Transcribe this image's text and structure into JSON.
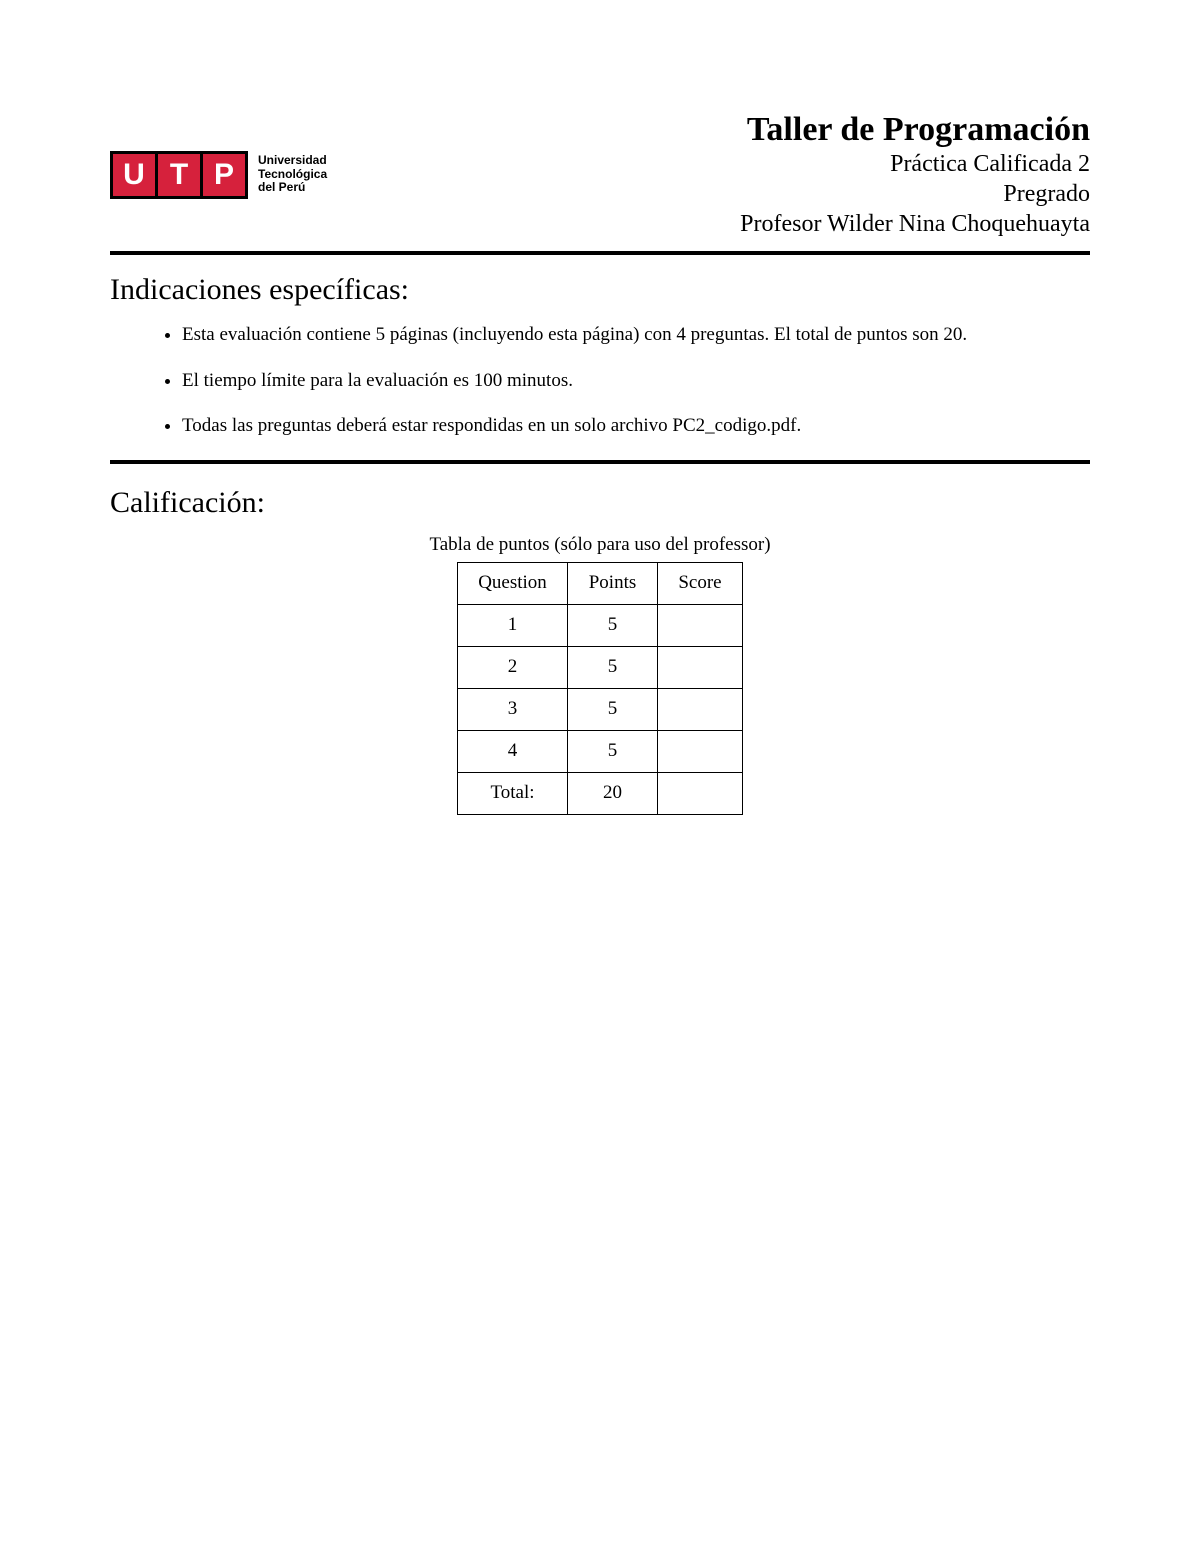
{
  "logo": {
    "letters": [
      "U",
      "T",
      "P"
    ],
    "letter_bg": "#d6213c",
    "letter_fg": "#ffffff",
    "outer_bg": "#000000",
    "text_line1": "Universidad",
    "text_line2": "Tecnológica",
    "text_line3": "del Perú"
  },
  "header": {
    "course_title": "Taller de Programación",
    "subtitle1": "Práctica Calificada 2",
    "subtitle2": "Pregrado",
    "subtitle3": "Profesor Wilder Nina Choquehuayta"
  },
  "sections": {
    "indicaciones_title": "Indicaciones específicas:",
    "calificacion_title": "Calificación:"
  },
  "indicaciones": {
    "item1": "Esta evaluación contiene 5 páginas (incluyendo esta página) con 4 preguntas. El total de puntos son 20.",
    "item2": "El tiempo límite para la evaluación es 100 minutos.",
    "item3": "Todas las preguntas deberá estar respondidas en un solo archivo PC2_codigo.pdf."
  },
  "score_table": {
    "caption": "Tabla de puntos (sólo para uso del professor)",
    "headers": {
      "c1": "Question",
      "c2": "Points",
      "c3": "Score"
    },
    "rows": [
      {
        "q": "1",
        "p": "5",
        "s": ""
      },
      {
        "q": "2",
        "p": "5",
        "s": ""
      },
      {
        "q": "3",
        "p": "5",
        "s": ""
      },
      {
        "q": "4",
        "p": "5",
        "s": ""
      }
    ],
    "total_label": "Total:",
    "total_points": "20",
    "total_score": ""
  },
  "colors": {
    "rule": "#000000",
    "background": "#ffffff",
    "text": "#000000"
  }
}
